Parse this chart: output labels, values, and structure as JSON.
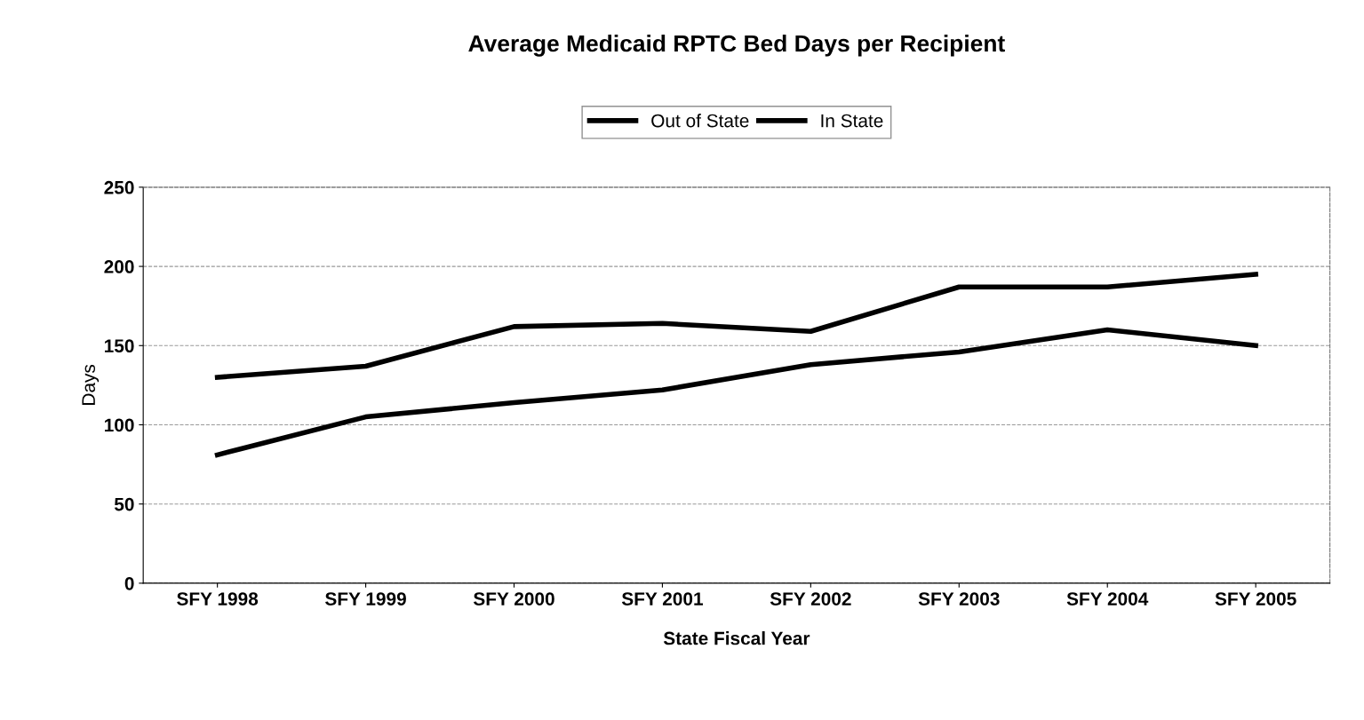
{
  "chart_data": {
    "type": "line",
    "title": "Average Medicaid RPTC Bed Days per Recipient",
    "xlabel": "State Fiscal Year",
    "ylabel": "Days",
    "categories": [
      "SFY 1998",
      "SFY 1999",
      "SFY 2000",
      "SFY 2001",
      "SFY 2002",
      "SFY 2003",
      "SFY 2004",
      "SFY 2005"
    ],
    "series": [
      {
        "name": "Out of State",
        "color": "#000000",
        "values": [
          130,
          137,
          162,
          164,
          159,
          187,
          187,
          195
        ]
      },
      {
        "name": "In State",
        "color": "#000000",
        "values": [
          81,
          105,
          114,
          122,
          138,
          146,
          160,
          150
        ]
      }
    ],
    "ylim": [
      0,
      250
    ],
    "yticks": [
      0,
      50,
      100,
      150,
      200,
      250
    ],
    "grid": "y",
    "legend": "top",
    "marker": "none",
    "line_style": "solid"
  }
}
